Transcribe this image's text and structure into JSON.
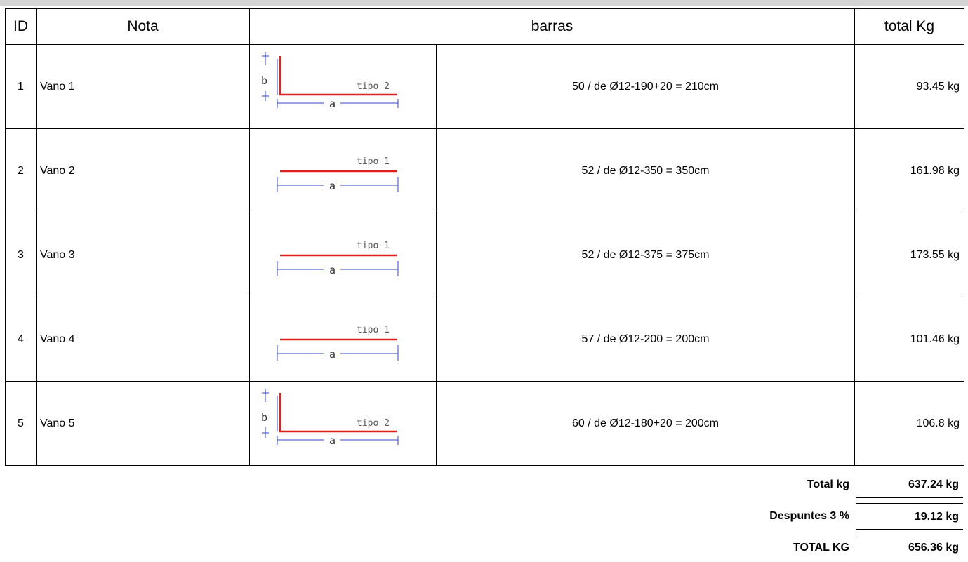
{
  "table": {
    "headers": {
      "id": "ID",
      "nota": "Nota",
      "barras": "barras",
      "total": "total Kg"
    },
    "rows": [
      {
        "id": "1",
        "nota": "Vano 1",
        "tipo": "tipo 2",
        "a": "a",
        "b": "b",
        "desc": "50 / de Ø12-190+20 = 210cm",
        "total": "93.45 kg"
      },
      {
        "id": "2",
        "nota": "Vano 2",
        "tipo": "tipo 1",
        "a": "a",
        "desc": "52 / de Ø12-350 = 350cm",
        "total": "161.98 kg"
      },
      {
        "id": "3",
        "nota": "Vano 3",
        "tipo": "tipo 1",
        "a": "a",
        "desc": "52 / de Ø12-375 = 375cm",
        "total": "173.55 kg"
      },
      {
        "id": "4",
        "nota": "Vano 4",
        "tipo": "tipo 1",
        "a": "a",
        "desc": "57 / de Ø12-200 = 200cm",
        "total": "101.46 kg"
      },
      {
        "id": "5",
        "nota": "Vano 5",
        "tipo": "tipo 2",
        "a": "a",
        "b": "b",
        "desc": "60 / de Ø12-180+20 = 200cm",
        "total": "106.8 kg"
      }
    ]
  },
  "summary": {
    "total_label": "Total kg",
    "total_value": "637.24 kg",
    "despuntes_label": "Despuntes 3 %",
    "despuntes_value": "19.12 kg",
    "grand_label": "TOTAL KG",
    "grand_value": "656.36 kg"
  },
  "colors": {
    "bar": "#e0201e",
    "dimension": "#3344cc"
  }
}
